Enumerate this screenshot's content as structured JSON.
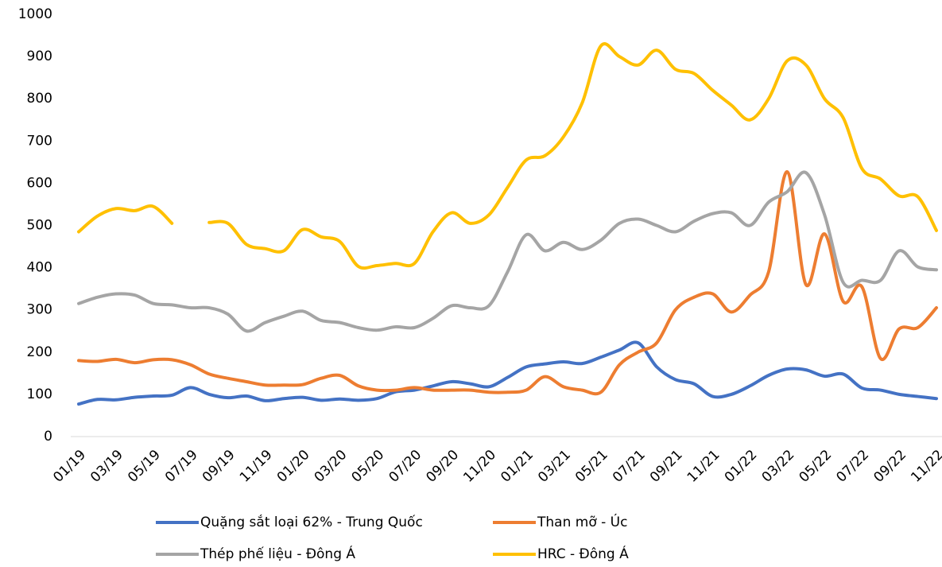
{
  "chart_data": {
    "type": "line",
    "categories": [
      "01/19",
      null,
      "03/19",
      null,
      "05/19",
      null,
      "07/19",
      null,
      "09/19",
      null,
      "11/19",
      null,
      "01/20",
      null,
      "03/20",
      null,
      "05/20",
      null,
      "07/20",
      null,
      "09/20",
      null,
      "11/20",
      null,
      "01/21",
      null,
      "03/21",
      null,
      "05/21",
      null,
      "07/21",
      null,
      "09/21",
      null,
      "11/21",
      null,
      "01/22",
      null,
      "03/22",
      null,
      "05/22",
      null,
      "07/22",
      null,
      "09/22",
      null,
      "11/22"
    ],
    "series": [
      {
        "name": "Quặng sắt loại 62% - Trung Quốc",
        "color": "#4472c4",
        "values": [
          77,
          88,
          87,
          93,
          96,
          98,
          116,
          100,
          92,
          96,
          85,
          90,
          93,
          86,
          89,
          86,
          90,
          106,
          110,
          120,
          130,
          125,
          118,
          140,
          165,
          172,
          177,
          173,
          188,
          205,
          222,
          165,
          135,
          125,
          95,
          100,
          120,
          145,
          160,
          158,
          143,
          148,
          115,
          110,
          100,
          95,
          90
        ]
      },
      {
        "name": "Than mỡ - Úc",
        "color": "#ed7d31",
        "values": [
          180,
          178,
          183,
          175,
          182,
          182,
          170,
          148,
          138,
          130,
          122,
          122,
          123,
          138,
          145,
          120,
          110,
          110,
          116,
          110,
          110,
          110,
          105,
          105,
          110,
          142,
          118,
          110,
          105,
          170,
          200,
          222,
          300,
          330,
          338,
          295,
          335,
          390,
          627,
          360,
          480,
          320,
          355,
          185,
          255,
          258,
          305
        ]
      },
      {
        "name": "Thép phế liệu - Đông Á",
        "color": "#a5a5a5",
        "values": [
          315,
          330,
          338,
          335,
          315,
          312,
          305,
          305,
          290,
          250,
          270,
          285,
          297,
          275,
          270,
          258,
          252,
          260,
          258,
          280,
          310,
          305,
          310,
          390,
          478,
          440,
          460,
          443,
          465,
          505,
          515,
          500,
          485,
          510,
          528,
          530,
          500,
          555,
          580,
          625,
          525,
          365,
          370,
          370,
          440,
          402,
          395
        ]
      },
      {
        "name": "HRC - Đông Á",
        "color": "#ffc000",
        "values": [
          485,
          522,
          540,
          535,
          545,
          505,
          null,
          507,
          505,
          455,
          445,
          440,
          490,
          473,
          462,
          403,
          405,
          410,
          410,
          485,
          530,
          505,
          525,
          590,
          655,
          665,
          710,
          790,
          925,
          900,
          880,
          915,
          870,
          860,
          820,
          785,
          750,
          800,
          890,
          880,
          800,
          755,
          635,
          610,
          570,
          568,
          488
        ]
      }
    ],
    "ylim": [
      0,
      1000
    ],
    "yticks": [
      0,
      100,
      200,
      300,
      400,
      500,
      600,
      700,
      800,
      900,
      1000
    ],
    "grid": false
  }
}
